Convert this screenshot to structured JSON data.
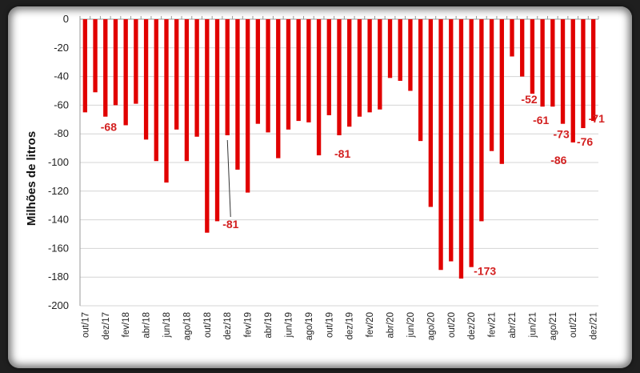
{
  "chart_data": {
    "type": "bar",
    "title": "",
    "xlabel": "",
    "ylabel": "Milhões de litros",
    "ylim": [
      -200,
      0
    ],
    "yticks": [
      0,
      -20,
      -40,
      -60,
      -80,
      -100,
      -120,
      -140,
      -160,
      -180,
      -200
    ],
    "grid": true,
    "bar_color": "#e10000",
    "categories": [
      "out/17",
      "nov/17",
      "dez/17",
      "jan/18",
      "fev/18",
      "mar/18",
      "abr/18",
      "mai/18",
      "jun/18",
      "jul/18",
      "ago/18",
      "set/18",
      "out/18",
      "nov/18",
      "dez/18",
      "jan/19",
      "fev/19",
      "mar/19",
      "abr/19",
      "mai/19",
      "jun/19",
      "jul/19",
      "ago/19",
      "set/19",
      "out/19",
      "nov/19",
      "dez/19",
      "jan/20",
      "fev/20",
      "mar/20",
      "abr/20",
      "mai/20",
      "jun/20",
      "jul/20",
      "ago/20",
      "set/20",
      "out/20",
      "nov/20",
      "dez/20",
      "jan/21",
      "fev/21",
      "mar/21",
      "abr/21",
      "mai/21",
      "jun/21",
      "jul/21",
      "ago/21",
      "set/21",
      "out/21",
      "nov/21",
      "dez/21"
    ],
    "x_tick_labels": [
      "out/17",
      "dez/17",
      "fev/18",
      "abr/18",
      "jun/18",
      "ago/18",
      "out/18",
      "dez/18",
      "fev/19",
      "abr/19",
      "jun/19",
      "ago/19",
      "out/19",
      "dez/19",
      "fev/20",
      "abr/20",
      "jun/20",
      "ago/20",
      "out/20",
      "dez/20",
      "fev/21",
      "abr/21",
      "jun/21",
      "ago/21",
      "out/21",
      "dez/21"
    ],
    "values": [
      -65,
      -51,
      -68,
      -60,
      -74,
      -59,
      -84,
      -99,
      -114,
      -77,
      -99,
      -82,
      -149,
      -141,
      -81,
      -105,
      -121,
      -73,
      -79,
      -97,
      -77,
      -71,
      -72,
      -95,
      -67,
      -81,
      -75,
      -68,
      -65,
      -63,
      -41,
      -43,
      -50,
      -85,
      -131,
      -175,
      -169,
      -181,
      -173,
      -141,
      -92,
      -101,
      -26,
      -40,
      -52,
      -61,
      -61,
      -73,
      -86,
      -76,
      -71
    ],
    "annotations": [
      {
        "index": 2,
        "label": "-68"
      },
      {
        "index": 14,
        "label": "-81"
      },
      {
        "index": 25,
        "label": "-81"
      },
      {
        "index": 38,
        "label": "-173"
      },
      {
        "index": 44,
        "label": "-52"
      },
      {
        "index": 45,
        "label": "-61"
      },
      {
        "index": 47,
        "label": "-73"
      },
      {
        "index": 48,
        "label": "-86"
      },
      {
        "index": 49,
        "label": "-76"
      },
      {
        "index": 50,
        "label": "-71"
      }
    ]
  }
}
